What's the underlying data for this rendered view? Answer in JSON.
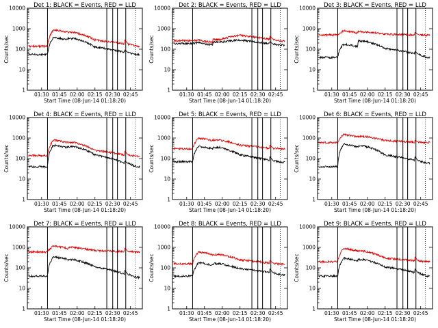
{
  "chart_data": {
    "type": "line",
    "y_scale": "log",
    "ylim": [
      1,
      10000
    ],
    "y_ticks": [
      1,
      10,
      100,
      1000,
      10000
    ],
    "y_tick_labels": [
      "1",
      "10",
      "100",
      "1000",
      "10000"
    ],
    "xlim_minutes": [
      78,
      175
    ],
    "x_ticks": [
      "01:30",
      "01:45",
      "02:00",
      "02:15",
      "02:30",
      "02:45"
    ],
    "ylabel": "Counts/sec",
    "xlabel": "Start Time (08-Jun-14 01:18:20)",
    "x_unit": "time (HH:MM)",
    "series_colors": {
      "events": "#000000",
      "lld": "#e00000"
    },
    "flag_lines_minutes": [
      95,
      145,
      150,
      154,
      161
    ],
    "dotted_lines_minutes": [
      169
    ],
    "panels": [
      {
        "title": "Det 1: BLACK = Events, RED = LLD",
        "events_level": [
          55,
          380,
          330,
          130,
          70,
          55
        ],
        "lld_level": [
          140,
          900,
          650,
          280,
          180,
          140
        ]
      },
      {
        "title": "Det 2: BLACK = Events, RED = LLD",
        "events_level": [
          190,
          210,
          230,
          280,
          180,
          160
        ],
        "lld_level": [
          260,
          280,
          300,
          480,
          300,
          250
        ]
      },
      {
        "title": "Det 3: BLACK = Events, RED = LLD",
        "events_level": [
          40,
          180,
          250,
          110,
          60,
          40
        ],
        "lld_level": [
          500,
          800,
          700,
          550,
          500,
          480
        ]
      },
      {
        "title": "Det 4: BLACK = Events, RED = LLD",
        "events_level": [
          40,
          450,
          380,
          150,
          60,
          40
        ],
        "lld_level": [
          140,
          800,
          600,
          250,
          150,
          130
        ]
      },
      {
        "title": "Det 5: BLACK = Events, RED = LLD",
        "events_level": [
          70,
          400,
          350,
          150,
          80,
          65
        ],
        "lld_level": [
          300,
          1000,
          800,
          450,
          320,
          300
        ]
      },
      {
        "title": "Det 6: BLACK = Events, RED = LLD",
        "events_level": [
          40,
          500,
          400,
          150,
          80,
          60
        ],
        "lld_level": [
          600,
          1500,
          1200,
          750,
          620,
          600
        ]
      },
      {
        "title": "Det 7: BLACK = Events, RED = LLD",
        "events_level": [
          40,
          350,
          250,
          110,
          50,
          35
        ],
        "lld_level": [
          600,
          1200,
          1000,
          700,
          620,
          600
        ]
      },
      {
        "title": "Det 8: BLACK = Events, RED = LLD",
        "events_level": [
          40,
          180,
          160,
          90,
          60,
          45
        ],
        "lld_level": [
          160,
          600,
          450,
          250,
          170,
          150
        ]
      },
      {
        "title": "Det 9: BLACK = Events, RED = LLD",
        "events_level": [
          40,
          300,
          250,
          110,
          60,
          40
        ],
        "lld_level": [
          200,
          900,
          650,
          300,
          220,
          200
        ]
      }
    ]
  }
}
